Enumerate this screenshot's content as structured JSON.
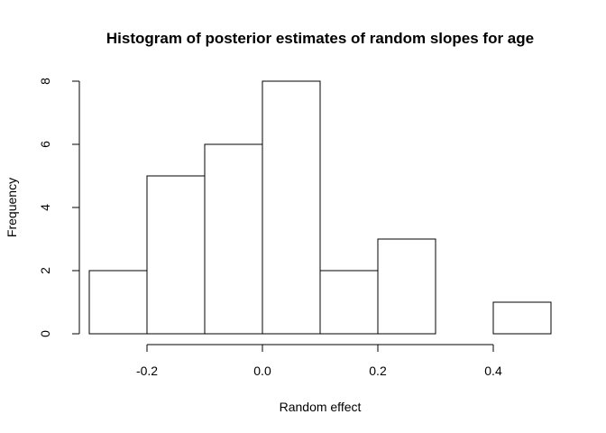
{
  "chart_data": {
    "type": "bar",
    "title": "Histogram of posterior estimates of random slopes for age",
    "xlabel": "Random effect",
    "ylabel": "Frequency",
    "bin_edges": [
      -0.3,
      -0.2,
      -0.1,
      0.0,
      0.1,
      0.2,
      0.3,
      0.4,
      0.5
    ],
    "values": [
      2,
      5,
      6,
      8,
      2,
      3,
      0,
      1
    ],
    "x_ticks": [
      {
        "value": -0.2,
        "label": "-0.2"
      },
      {
        "value": 0.0,
        "label": "0.0"
      },
      {
        "value": 0.2,
        "label": "0.2"
      },
      {
        "value": 0.4,
        "label": "0.4"
      }
    ],
    "y_ticks": [
      {
        "value": 0,
        "label": "0"
      },
      {
        "value": 2,
        "label": "2"
      },
      {
        "value": 4,
        "label": "4"
      },
      {
        "value": 6,
        "label": "6"
      },
      {
        "value": 8,
        "label": "8"
      }
    ],
    "xlim": [
      -0.3,
      0.5
    ],
    "ylim": [
      0,
      8
    ],
    "grid": false
  }
}
